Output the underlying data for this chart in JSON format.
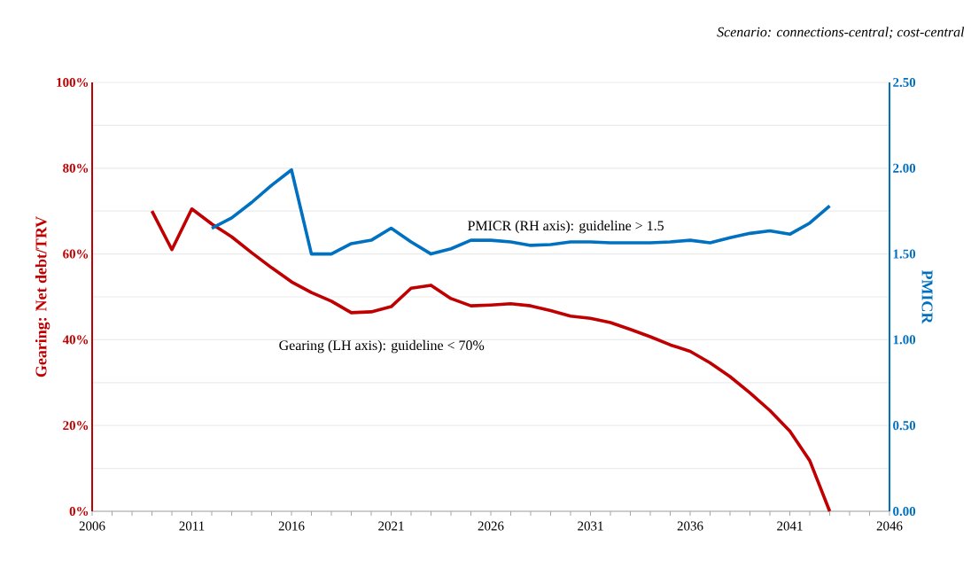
{
  "chart_data": {
    "type": "line",
    "ylabel": "Gearing: Net debt/TRV",
    "y2label": "PMICR",
    "annotations": [
      "Scenario: connections-central;  cost-central"
    ],
    "x": [
      2009,
      2010,
      2011,
      2012,
      2013,
      2014,
      2015,
      2016,
      2017,
      2018,
      2019,
      2020,
      2021,
      2022,
      2023,
      2024,
      2025,
      2026,
      2027,
      2028,
      2029,
      2030,
      2031,
      2032,
      2033,
      2034,
      2035,
      2036,
      2037,
      2038,
      2039,
      2040,
      2041,
      2042,
      2043
    ],
    "series": [
      {
        "name": "Gearing (LH axis): guideline < 70%",
        "color": "#c00000",
        "values": [
          70,
          61,
          70.5,
          67,
          64,
          60.3,
          56.8,
          53.5,
          51,
          49,
          46.3,
          46.5,
          47.7,
          52,
          52.7,
          49.6,
          47.9,
          48.1,
          48.4,
          47.9,
          46.8,
          45.5,
          45,
          44,
          42.4,
          40.7,
          38.8,
          37.3,
          34.6,
          31.4,
          27.6,
          23.5,
          18.7,
          11.8,
          0
        ]
      },
      {
        "name": "PMICR (RH axis): guideline > 1.5",
        "color": "#0070c0",
        "axis": "y2",
        "values": [
          null,
          null,
          null,
          1.65,
          1.71,
          1.8,
          1.9,
          1.99,
          1.5,
          1.5,
          1.56,
          1.58,
          1.65,
          1.57,
          1.5,
          1.53,
          1.58,
          1.58,
          1.57,
          1.55,
          1.555,
          1.57,
          1.57,
          1.565,
          1.565,
          1.565,
          1.57,
          1.58,
          1.565,
          1.595,
          1.62,
          1.635,
          1.615,
          1.68,
          1.78
        ]
      }
    ],
    "xlim": [
      2006,
      2046
    ],
    "xticks": [
      2006,
      {
        "value": 2007,
        "label": null
      },
      {
        "value": 2008,
        "label": null
      },
      {
        "value": 2009,
        "label": null
      },
      {
        "value": 2010,
        "label": null
      },
      2011,
      {
        "value": 2012,
        "label": null
      },
      {
        "value": 2013,
        "label": null
      },
      {
        "value": 2014,
        "label": null
      },
      {
        "value": 2015,
        "label": null
      },
      2016,
      {
        "value": 2017,
        "label": null
      },
      {
        "value": 2018,
        "label": null
      },
      {
        "value": 2019,
        "label": null
      },
      {
        "value": 2020,
        "label": null
      },
      2021,
      {
        "value": 2022,
        "label": null
      },
      {
        "value": 2023,
        "label": null
      },
      {
        "value": 2024,
        "label": null
      },
      {
        "value": 2025,
        "label": null
      },
      2026,
      {
        "value": 2027,
        "label": null
      },
      {
        "value": 2028,
        "label": null
      },
      {
        "value": 2029,
        "label": null
      },
      {
        "value": 2030,
        "label": null
      },
      2031,
      {
        "value": 2032,
        "label": null
      },
      {
        "value": 2033,
        "label": null
      },
      {
        "value": 2034,
        "label": null
      },
      {
        "value": 2035,
        "label": null
      },
      2036,
      {
        "value": 2037,
        "label": null
      },
      {
        "value": 2038,
        "label": null
      },
      {
        "value": 2039,
        "label": null
      },
      {
        "value": 2040,
        "label": null
      },
      2041,
      {
        "value": 2042,
        "label": null
      },
      {
        "value": 2043,
        "label": null
      },
      {
        "value": 2044,
        "label": null
      },
      {
        "value": 2045,
        "label": null
      },
      2046
    ],
    "ylim": [
      0,
      100
    ],
    "yticks": [
      {
        "value": 0,
        "label": "0%"
      },
      {
        "value": 10,
        "label": null
      },
      {
        "value": 20,
        "label": "20%"
      },
      {
        "value": 30,
        "label": null
      },
      {
        "value": 40,
        "label": "40%"
      },
      {
        "value": 50,
        "label": null
      },
      {
        "value": 60,
        "label": "60%"
      },
      {
        "value": 70,
        "label": null
      },
      {
        "value": 80,
        "label": "80%"
      },
      {
        "value": 90,
        "label": null
      },
      {
        "value": 100,
        "label": "100%"
      }
    ],
    "y2lim": [
      0,
      2.5
    ],
    "y2ticks": [
      {
        "value": 0,
        "label": "0.00"
      },
      {
        "value": 0.5,
        "label": "0.50"
      },
      {
        "value": 1,
        "label": "1.00"
      },
      {
        "value": 1.5,
        "label": "1.50"
      },
      {
        "value": 2,
        "label": "2.00"
      },
      {
        "value": 2.5,
        "label": "2.50"
      }
    ],
    "grid": "y"
  }
}
